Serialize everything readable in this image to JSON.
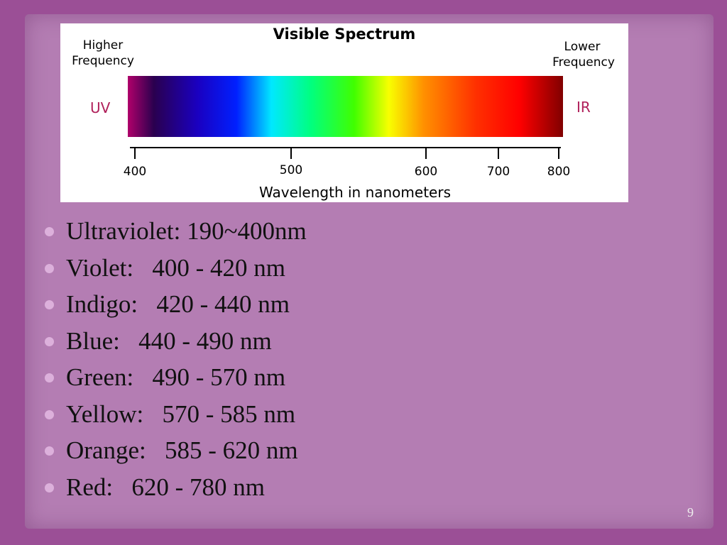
{
  "figure": {
    "title": "Visible Spectrum",
    "left_label": [
      "Higher",
      "Frequency"
    ],
    "right_label": [
      "Lower",
      "Frequency"
    ],
    "uv": "UV",
    "ir": "IR",
    "ticks": [
      400,
      500,
      600,
      700,
      800
    ],
    "axis_label": "Wavelength in nanometers"
  },
  "bullets": [
    "Ultraviolet: 190~400nm",
    "Violet:   400 - 420 nm",
    "Indigo:   420 - 440 nm",
    "Blue:   440 - 490 nm",
    "Green:   490 - 570 nm",
    "Yellow:   570 - 585 nm",
    "Orange:   585 - 620 nm",
    "Red:   620 - 780 nm"
  ],
  "page_number": "9"
}
